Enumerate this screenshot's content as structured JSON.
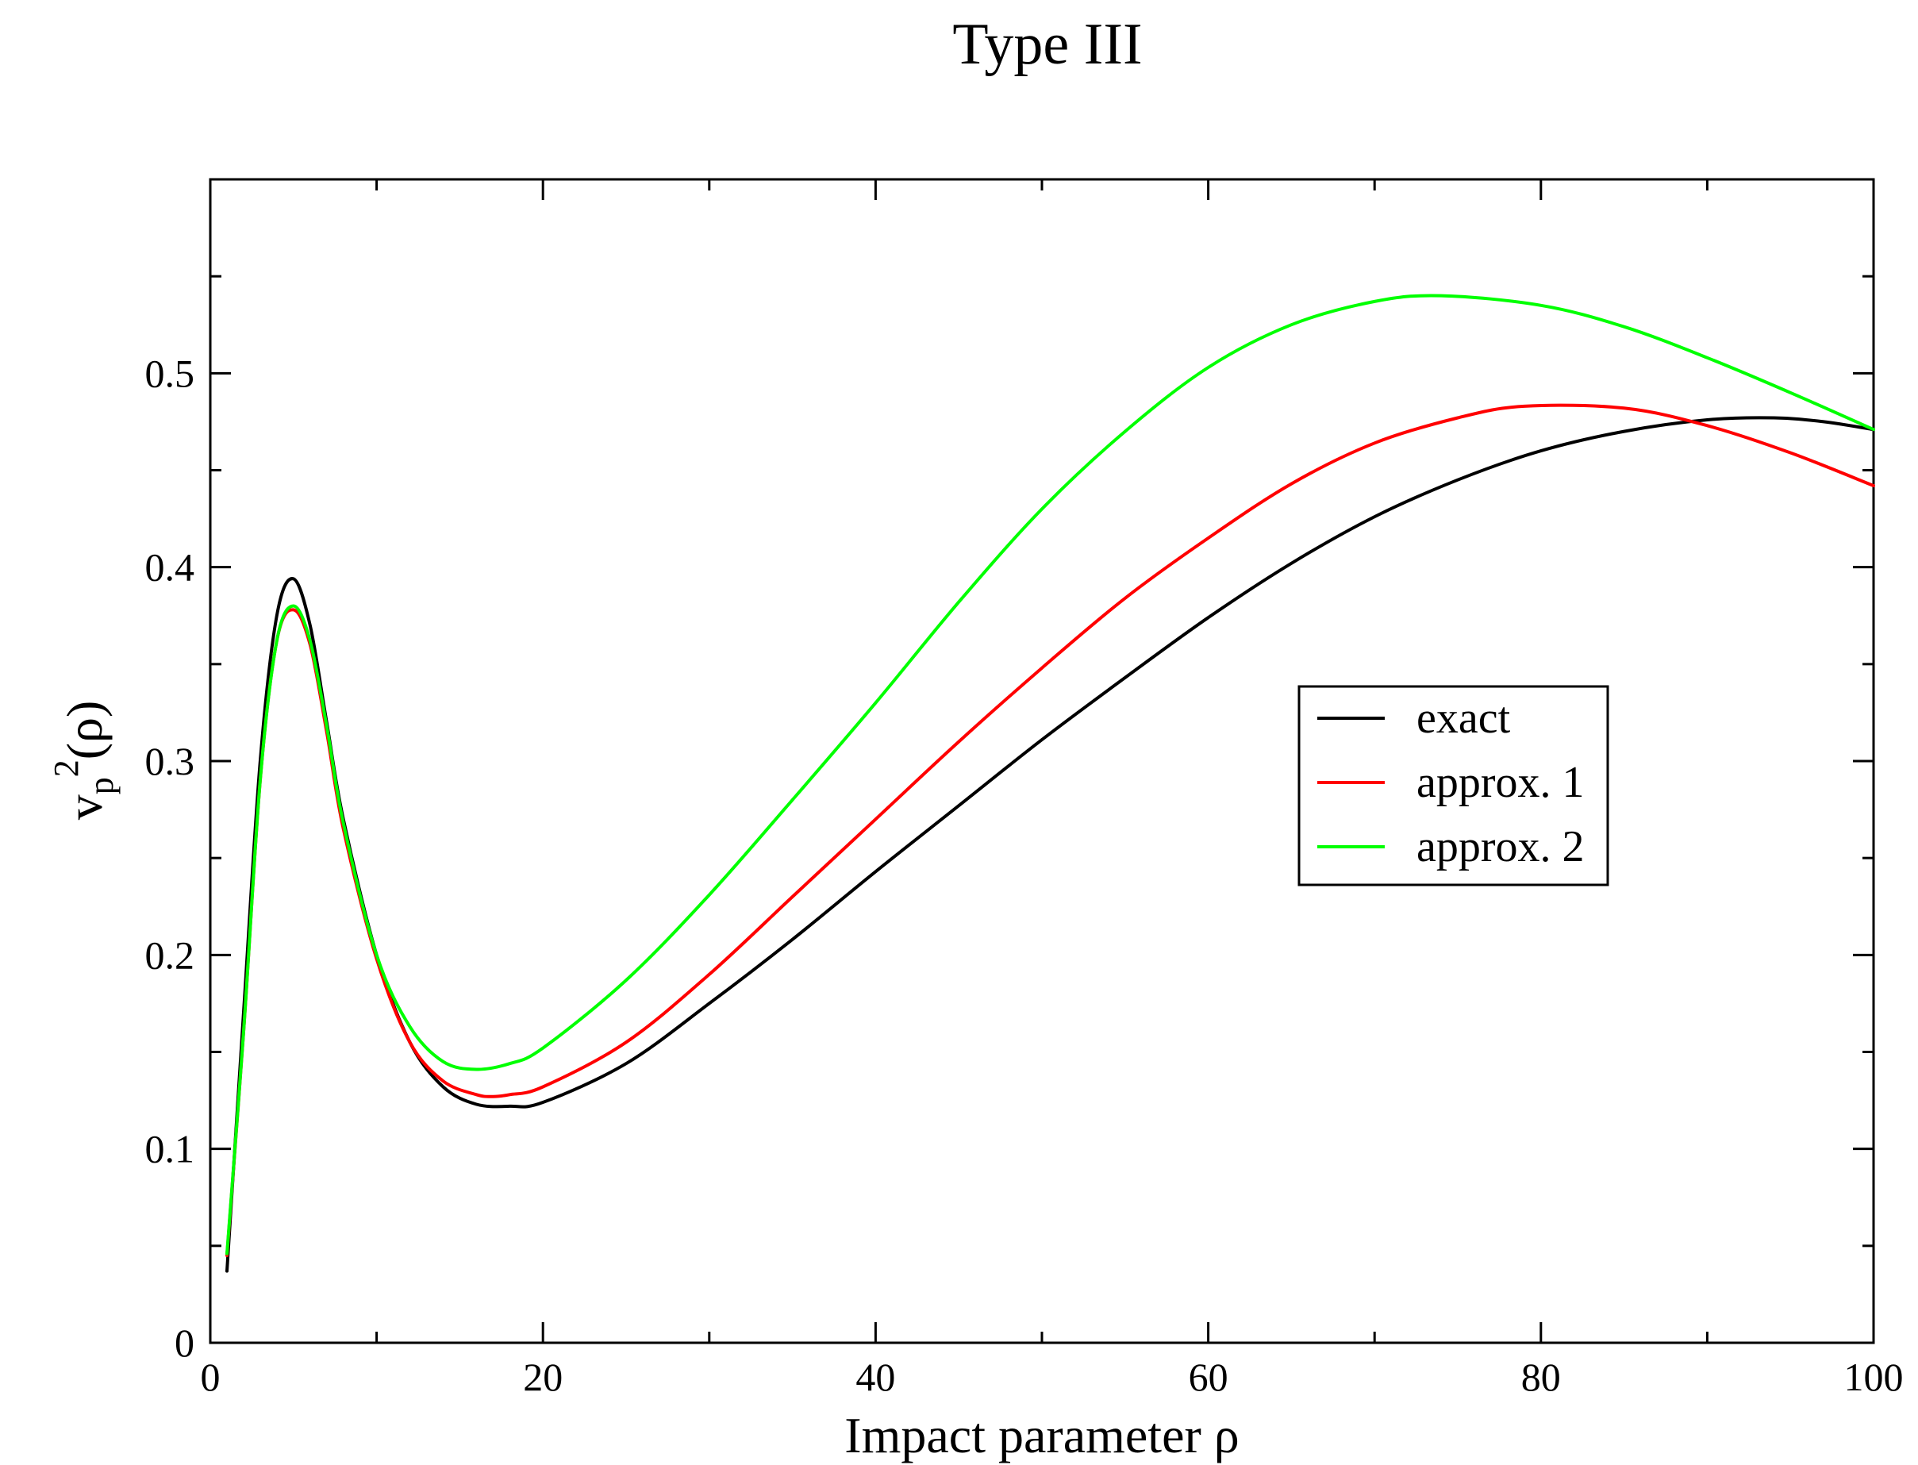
{
  "chart_data": {
    "type": "line",
    "title": "Type III",
    "xlabel": "Impact parameter ρ",
    "ylabel_parts": {
      "base": "v",
      "sub": "p",
      "sup": "2",
      "arg": "(ρ)"
    },
    "xlim": [
      0,
      100
    ],
    "ylim": [
      0,
      0.6
    ],
    "xticks": [
      0,
      20,
      40,
      60,
      80,
      100
    ],
    "xtick_labels": [
      "0",
      "20",
      "40",
      "60",
      "80",
      "100"
    ],
    "yticks": [
      0,
      0.1,
      0.2,
      0.3,
      0.4,
      0.5
    ],
    "ytick_labels": [
      "0",
      "0.1",
      "0.2",
      "0.3",
      "0.4",
      "0.5"
    ],
    "x_minor_step": 10,
    "y_minor_step": 0.05,
    "grid": false,
    "legend_position": "center-right",
    "series": [
      {
        "name": "exact",
        "color": "#000000",
        "x": [
          1,
          2,
          3,
          4,
          5,
          6,
          7,
          8,
          10,
          12,
          14,
          16,
          18,
          20,
          25,
          30,
          35,
          40,
          45,
          50,
          55,
          60,
          65,
          70,
          75,
          80,
          85,
          90,
          94,
          97,
          100
        ],
        "y": [
          0.037,
          0.17,
          0.3,
          0.375,
          0.394,
          0.37,
          0.32,
          0.27,
          0.2,
          0.155,
          0.132,
          0.123,
          0.122,
          0.124,
          0.144,
          0.175,
          0.208,
          0.243,
          0.277,
          0.311,
          0.343,
          0.374,
          0.402,
          0.426,
          0.445,
          0.46,
          0.47,
          0.476,
          0.477,
          0.475,
          0.471
        ]
      },
      {
        "name": "approx. 1",
        "color": "#ff0000",
        "x": [
          1,
          2,
          3,
          4,
          5,
          6,
          7,
          8,
          10,
          12,
          14,
          16,
          17,
          18,
          20,
          25,
          30,
          35,
          40,
          45,
          50,
          55,
          60,
          65,
          70,
          75,
          79,
          85,
          90,
          95,
          100
        ],
        "y": [
          0.045,
          0.16,
          0.29,
          0.362,
          0.378,
          0.36,
          0.315,
          0.265,
          0.198,
          0.155,
          0.135,
          0.128,
          0.127,
          0.128,
          0.132,
          0.155,
          0.19,
          0.23,
          0.27,
          0.31,
          0.348,
          0.384,
          0.415,
          0.443,
          0.464,
          0.477,
          0.483,
          0.482,
          0.473,
          0.459,
          0.442
        ]
      },
      {
        "name": "approx. 2",
        "color": "#00ff00",
        "x": [
          1,
          2,
          3,
          4,
          5,
          6,
          7,
          8,
          10,
          12,
          14,
          16,
          18,
          20,
          25,
          30,
          35,
          40,
          45,
          50,
          55,
          60,
          65,
          70,
          74,
          80,
          85,
          90,
          95,
          100
        ],
        "y": [
          0.046,
          0.16,
          0.29,
          0.362,
          0.38,
          0.362,
          0.318,
          0.268,
          0.2,
          0.163,
          0.145,
          0.141,
          0.144,
          0.152,
          0.187,
          0.231,
          0.28,
          0.33,
          0.382,
          0.43,
          0.47,
          0.503,
          0.525,
          0.537,
          0.54,
          0.535,
          0.524,
          0.508,
          0.49,
          0.471
        ]
      }
    ]
  }
}
